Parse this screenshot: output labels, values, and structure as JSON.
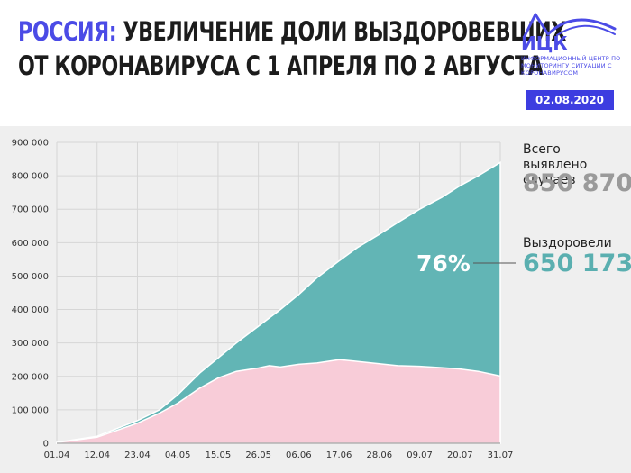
{
  "header": {
    "title_accent": "РОССИЯ:",
    "title_rest": "УВЕЛИЧЕНИЕ ДОЛИ ВЫЗДОРОВЕВШИХ",
    "title_line2": "ОТ КОРОНАВИРУСА С 1 АПРЕЛЯ ПО 2 АВГУСТА",
    "logo_name": "ИЦК",
    "logo_subtitle": "ИНФОРМАЦИОННЫЙ ЦЕНТР ПО МОНИТОРИНГУ СИТУАЦИИ С КОРОНАВИРУСОМ",
    "date": "02.08.2020"
  },
  "summary": {
    "total_label": "Всего выявлено случаев",
    "total_value": "850 870",
    "recovered_label": "Выздоровели",
    "recovered_value": "650 173",
    "recovered_share": "76%"
  },
  "colors": {
    "brand": "#3d3de0",
    "recovered": "#62b5b5",
    "active": "#f8ccd8",
    "total_value": "#9a9a9a",
    "recovered_value": "#5aafb0",
    "background": "#efefef"
  },
  "chart_data": {
    "type": "area",
    "stacked": true,
    "x_range": [
      "01.04",
      "31.07"
    ],
    "x_tick_labels": [
      "01.04",
      "12.04",
      "23.04",
      "04.05",
      "15.05",
      "26.05",
      "06.06",
      "17.06",
      "28.06",
      "09.07",
      "20.07",
      "31.07"
    ],
    "y_tick_labels": [
      "0",
      "100 000",
      "200 000",
      "300 000",
      "400 000",
      "500 000",
      "600 000",
      "700 000",
      "800 000",
      "900 000"
    ],
    "ylim": [
      0,
      900000
    ],
    "grid": true,
    "series": [
      {
        "role": "active",
        "points": [
          [
            "01.04",
            2500
          ],
          [
            "12.04",
            18000
          ],
          [
            "23.04",
            60000
          ],
          [
            "29.04",
            90000
          ],
          [
            "04.05",
            120000
          ],
          [
            "10.05",
            165000
          ],
          [
            "15.05",
            195000
          ],
          [
            "20.05",
            215000
          ],
          [
            "26.05",
            225000
          ],
          [
            "29.05",
            232000
          ],
          [
            "01.06",
            228000
          ],
          [
            "06.06",
            236000
          ],
          [
            "11.06",
            240000
          ],
          [
            "17.06",
            250000
          ],
          [
            "21.06",
            246000
          ],
          [
            "28.06",
            238000
          ],
          [
            "03.07",
            232000
          ],
          [
            "09.07",
            230000
          ],
          [
            "15.07",
            226000
          ],
          [
            "20.07",
            222000
          ],
          [
            "25.07",
            215000
          ],
          [
            "31.07",
            201000
          ]
        ]
      },
      {
        "role": "total",
        "points": [
          [
            "01.04",
            2800
          ],
          [
            "12.04",
            21000
          ],
          [
            "23.04",
            68000
          ],
          [
            "29.04",
            100000
          ],
          [
            "04.05",
            145000
          ],
          [
            "10.05",
            210000
          ],
          [
            "15.05",
            255000
          ],
          [
            "20.05",
            300000
          ],
          [
            "26.05",
            350000
          ],
          [
            "01.06",
            400000
          ],
          [
            "06.06",
            445000
          ],
          [
            "11.06",
            495000
          ],
          [
            "17.06",
            545000
          ],
          [
            "22.06",
            585000
          ],
          [
            "28.06",
            625000
          ],
          [
            "03.07",
            660000
          ],
          [
            "09.07",
            700000
          ],
          [
            "15.07",
            735000
          ],
          [
            "20.07",
            770000
          ],
          [
            "25.07",
            800000
          ],
          [
            "31.07",
            840000
          ]
        ]
      }
    ]
  }
}
